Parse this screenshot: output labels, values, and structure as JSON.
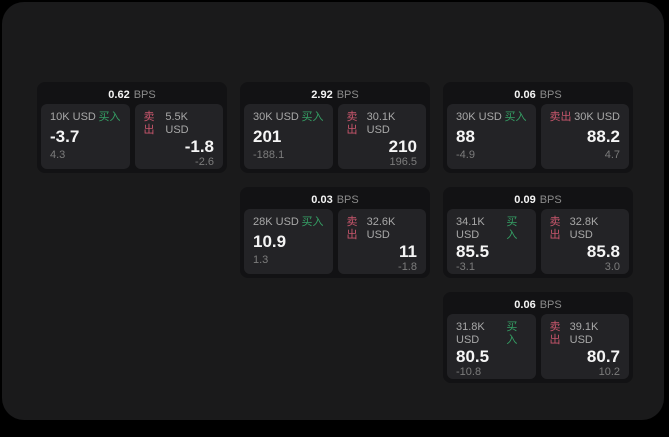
{
  "theme": {
    "page_bg": "#000000",
    "panel_bg": "#1a1a1b",
    "card_bg": "#121214",
    "tile_bg": "#232326",
    "text_primary": "#f5f5f5",
    "text_secondary": "#a8a8a8",
    "text_dim": "#7c7c7c",
    "buy_color": "#35a065",
    "sell_color": "#c8566c"
  },
  "labels": {
    "bps_unit": "BPS",
    "buy": "买入",
    "sell": "卖出"
  },
  "cards": [
    {
      "bps": "0.62",
      "buy": {
        "notional": "10K USD",
        "price": "-3.7",
        "delta": "4.3"
      },
      "sell": {
        "notional": "5.5K USD",
        "price": "-1.8",
        "delta": "-2.6"
      }
    },
    {
      "bps": "2.92",
      "buy": {
        "notional": "30K USD",
        "price": "201",
        "delta": "-188.1"
      },
      "sell": {
        "notional": "30.1K USD",
        "price": "210",
        "delta": "196.5"
      }
    },
    {
      "bps": "0.06",
      "buy": {
        "notional": "30K USD",
        "price": "88",
        "delta": "-4.9"
      },
      "sell": {
        "notional": "30K USD",
        "price": "88.2",
        "delta": "4.7"
      }
    },
    {
      "bps": "0.03",
      "buy": {
        "notional": "28K USD",
        "price": "10.9",
        "delta": "1.3"
      },
      "sell": {
        "notional": "32.6K USD",
        "price": "11",
        "delta": "-1.8"
      }
    },
    {
      "bps": "0.09",
      "buy": {
        "notional": "34.1K USD",
        "price": "85.5",
        "delta": "-3.1"
      },
      "sell": {
        "notional": "32.8K USD",
        "price": "85.8",
        "delta": "3.0"
      }
    },
    {
      "bps": "0.06",
      "buy": {
        "notional": "31.8K USD",
        "price": "80.5",
        "delta": "-10.8"
      },
      "sell": {
        "notional": "39.1K USD",
        "price": "80.7",
        "delta": "10.2"
      }
    }
  ]
}
